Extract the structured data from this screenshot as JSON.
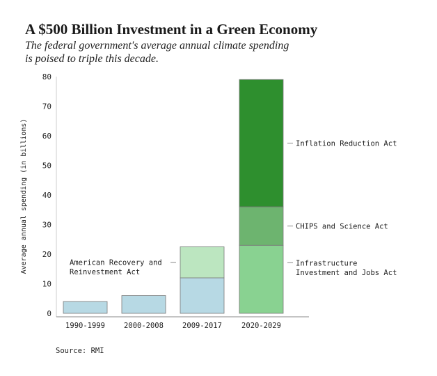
{
  "header": {
    "title": "A $500 Billion Investment in a Green Economy",
    "subtitle": "The federal government's average annual climate spending is poised to triple this decade."
  },
  "source": "Source: RMI",
  "chart_data": {
    "type": "bar",
    "stacked": true,
    "title": "A $500 Billion Investment in a Green Economy",
    "subtitle": "The federal government's average annual climate spending is poised to triple this decade.",
    "xlabel": "",
    "ylabel": "Average annual spending (in billions)",
    "ylim": [
      0,
      80
    ],
    "yticks": [
      0,
      10,
      20,
      30,
      40,
      50,
      60,
      70,
      80
    ],
    "grid": false,
    "categories": [
      "1990-1999",
      "2000-2008",
      "2009-2017",
      "2020-2029"
    ],
    "series": [
      {
        "name": "",
        "color": "#b7d9e4",
        "values": [
          4,
          6,
          12,
          0
        ]
      },
      {
        "name": "American Recovery and Reinvestment Act",
        "color": "#bce6c0",
        "values": [
          0,
          0,
          10.5,
          0
        ]
      },
      {
        "name": "Infrastructure Investment and Jobs Act",
        "color": "#89d291",
        "values": [
          0,
          0,
          0,
          23
        ]
      },
      {
        "name": "CHIPS and Science Act",
        "color": "#6db46f",
        "values": [
          0,
          0,
          0,
          13
        ]
      },
      {
        "name": "Inflation Reduction Act",
        "color": "#2e8f2e",
        "values": [
          0,
          0,
          0,
          43
        ]
      }
    ],
    "annotations": [
      {
        "lines": [
          "American Recovery and",
          "Reinvestment Act"
        ],
        "series": 1,
        "side": "left"
      },
      {
        "lines": [
          "Infrastructure",
          "Investment and Jobs Act"
        ],
        "series": 2,
        "side": "right"
      },
      {
        "lines": [
          "CHIPS and Science Act"
        ],
        "series": 3,
        "side": "right"
      },
      {
        "lines": [
          "Inflation Reduction Act"
        ],
        "series": 4,
        "side": "right"
      }
    ]
  }
}
